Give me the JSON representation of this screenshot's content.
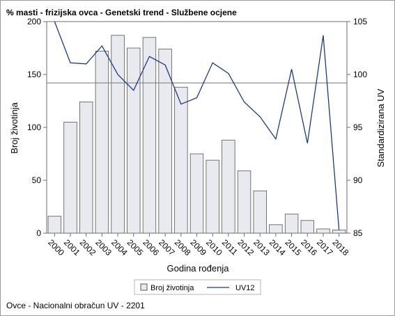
{
  "chart_data": {
    "type": "bar",
    "title": "% masti - frizijska ovca - Genetski trend - Službene ocjene",
    "xlabel": "Godina rođenja",
    "ylabel": "Broj životinja",
    "y2label": "Standardizirana UV",
    "footnote": "Ovce - Nacionalni obračun UV - 2201",
    "categories": [
      "2000",
      "2001",
      "2002",
      "2003",
      "2004",
      "2005",
      "2006",
      "2007",
      "2008",
      "2009",
      "2010",
      "2011",
      "2012",
      "2013",
      "2014",
      "2015",
      "2016",
      "2017",
      "2018"
    ],
    "ylim": [
      0,
      200
    ],
    "yticks": [
      0,
      50,
      100,
      150,
      200
    ],
    "y2lim": [
      85,
      105
    ],
    "y2ticks": [
      85,
      90,
      95,
      100,
      105
    ],
    "reference_line_y2": 99.2,
    "grid": false,
    "legend_position": "bottom",
    "series": [
      {
        "name": "Broj životinja",
        "type": "bar",
        "axis": "left",
        "values": [
          16,
          105,
          124,
          172,
          187,
          175,
          185,
          174,
          138,
          75,
          69,
          88,
          59,
          40,
          8,
          18,
          12,
          4,
          3
        ]
      },
      {
        "name": "UV12",
        "type": "line",
        "axis": "right",
        "values": [
          105.0,
          101.1,
          101.0,
          102.7,
          100.0,
          98.5,
          101.7,
          100.9,
          97.2,
          97.8,
          101.1,
          100.1,
          97.4,
          96.0,
          93.9,
          100.5,
          93.5,
          103.7,
          85.3
        ]
      }
    ],
    "colors": {
      "bar_fill": "#e8eaf0",
      "bar_stroke": "#555555",
      "line": "#1b3a8c",
      "ref_line": "#8c8c8c",
      "axis": "#6e6e6e"
    }
  }
}
